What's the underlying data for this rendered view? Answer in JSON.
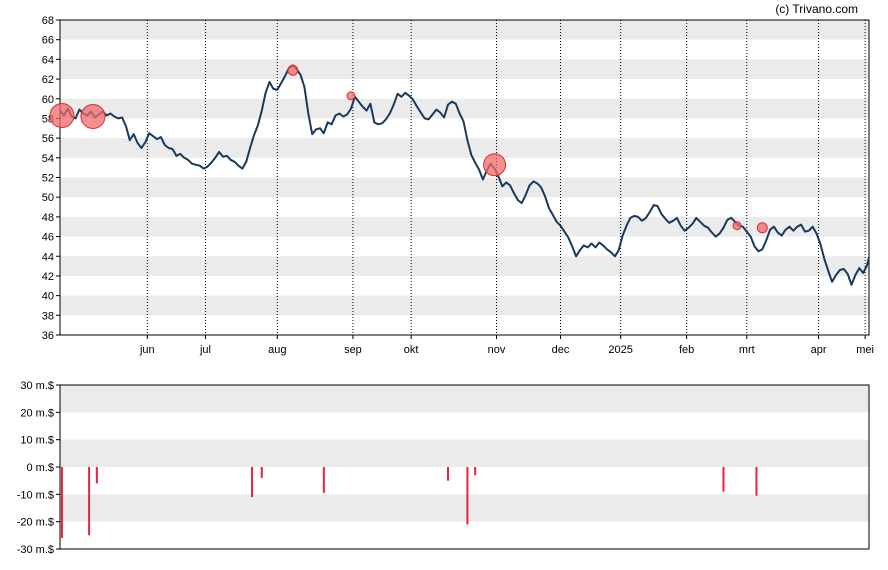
{
  "copyright": "(c) Trivano.com",
  "colors": {
    "price_line": "#1a3a5c",
    "band": "#ebebeb",
    "bubble_fill": "#f06a6a",
    "bubble_stroke": "#d93030",
    "bar": "#e3263a",
    "axis": "#000000"
  },
  "chart_data": [
    {
      "type": "line",
      "name": "price",
      "ylim": [
        36,
        68
      ],
      "y_ticks": [
        "36",
        "38",
        "40",
        "42",
        "44",
        "46",
        "48",
        "50",
        "52",
        "54",
        "56",
        "58",
        "60",
        "62",
        "64",
        "66",
        "68"
      ],
      "x_tick_labels": [
        "jun",
        "jul",
        "aug",
        "sep",
        "okt",
        "nov",
        "dec",
        "2025",
        "feb",
        "mrt",
        "apr",
        "mei"
      ],
      "x_tick_days": [
        45,
        75,
        112,
        151,
        181,
        225,
        258,
        289,
        323,
        354,
        391,
        415
      ],
      "x_range_days": [
        0,
        417
      ],
      "grid": "alternating horizontal bands, dotted vertical gridlines at month ticks",
      "points": [
        [
          0,
          58.8
        ],
        [
          2,
          58.3
        ],
        [
          4,
          59.0
        ],
        [
          6,
          58.2
        ],
        [
          8,
          58.0
        ],
        [
          10,
          58.9
        ],
        [
          12,
          58.5
        ],
        [
          14,
          58.3
        ],
        [
          16,
          58.7
        ],
        [
          18,
          58.1
        ],
        [
          20,
          58.4
        ],
        [
          22,
          58.7
        ],
        [
          24,
          58.3
        ],
        [
          26,
          58.5
        ],
        [
          28,
          58.2
        ],
        [
          30,
          58.0
        ],
        [
          32,
          58.1
        ],
        [
          34,
          57.2
        ],
        [
          36,
          55.8
        ],
        [
          38,
          56.4
        ],
        [
          40,
          55.5
        ],
        [
          42,
          55.0
        ],
        [
          44,
          55.6
        ],
        [
          46,
          56.5
        ],
        [
          48,
          56.2
        ],
        [
          50,
          55.9
        ],
        [
          52,
          56.1
        ],
        [
          54,
          55.3
        ],
        [
          56,
          55.0
        ],
        [
          58,
          54.9
        ],
        [
          60,
          54.2
        ],
        [
          62,
          54.4
        ],
        [
          64,
          54.0
        ],
        [
          66,
          53.8
        ],
        [
          68,
          53.4
        ],
        [
          70,
          53.3
        ],
        [
          72,
          53.2
        ],
        [
          74,
          52.9
        ],
        [
          76,
          53.1
        ],
        [
          78,
          53.5
        ],
        [
          80,
          54.0
        ],
        [
          82,
          54.6
        ],
        [
          84,
          54.1
        ],
        [
          86,
          54.2
        ],
        [
          88,
          53.8
        ],
        [
          90,
          53.6
        ],
        [
          92,
          53.2
        ],
        [
          94,
          52.9
        ],
        [
          96,
          53.6
        ],
        [
          98,
          55.0
        ],
        [
          100,
          56.3
        ],
        [
          102,
          57.3
        ],
        [
          104,
          58.8
        ],
        [
          106,
          60.6
        ],
        [
          108,
          61.7
        ],
        [
          110,
          61.0
        ],
        [
          112,
          60.9
        ],
        [
          114,
          61.6
        ],
        [
          116,
          62.3
        ],
        [
          118,
          63.1
        ],
        [
          120,
          63.4
        ],
        [
          122,
          63.0
        ],
        [
          124,
          62.4
        ],
        [
          126,
          61.2
        ],
        [
          128,
          58.5
        ],
        [
          130,
          56.4
        ],
        [
          132,
          56.9
        ],
        [
          134,
          57.0
        ],
        [
          136,
          56.5
        ],
        [
          138,
          57.6
        ],
        [
          140,
          57.4
        ],
        [
          142,
          58.3
        ],
        [
          144,
          58.5
        ],
        [
          146,
          58.2
        ],
        [
          148,
          58.4
        ],
        [
          150,
          59.0
        ],
        [
          152,
          60.2
        ],
        [
          154,
          59.7
        ],
        [
          156,
          59.2
        ],
        [
          158,
          58.8
        ],
        [
          160,
          59.5
        ],
        [
          162,
          57.6
        ],
        [
          164,
          57.4
        ],
        [
          166,
          57.5
        ],
        [
          168,
          57.9
        ],
        [
          170,
          58.5
        ],
        [
          172,
          59.4
        ],
        [
          174,
          60.5
        ],
        [
          176,
          60.2
        ],
        [
          178,
          60.6
        ],
        [
          180,
          60.3
        ],
        [
          182,
          59.9
        ],
        [
          184,
          59.2
        ],
        [
          186,
          58.6
        ],
        [
          188,
          58.0
        ],
        [
          190,
          57.9
        ],
        [
          192,
          58.4
        ],
        [
          194,
          58.9
        ],
        [
          196,
          58.6
        ],
        [
          198,
          58.1
        ],
        [
          200,
          59.4
        ],
        [
          202,
          59.7
        ],
        [
          204,
          59.5
        ],
        [
          206,
          58.5
        ],
        [
          208,
          57.7
        ],
        [
          210,
          55.8
        ],
        [
          212,
          54.3
        ],
        [
          214,
          53.5
        ],
        [
          216,
          52.8
        ],
        [
          218,
          51.8
        ],
        [
          220,
          52.7
        ],
        [
          222,
          53.4
        ],
        [
          224,
          52.9
        ],
        [
          226,
          52.1
        ],
        [
          228,
          51.1
        ],
        [
          230,
          51.5
        ],
        [
          232,
          51.2
        ],
        [
          234,
          50.4
        ],
        [
          236,
          49.7
        ],
        [
          238,
          49.4
        ],
        [
          240,
          50.2
        ],
        [
          242,
          51.2
        ],
        [
          244,
          51.6
        ],
        [
          246,
          51.4
        ],
        [
          248,
          51.0
        ],
        [
          250,
          50.1
        ],
        [
          252,
          48.9
        ],
        [
          254,
          48.2
        ],
        [
          256,
          47.5
        ],
        [
          258,
          47.1
        ],
        [
          260,
          46.5
        ],
        [
          262,
          45.9
        ],
        [
          264,
          45.0
        ],
        [
          266,
          44.0
        ],
        [
          268,
          44.6
        ],
        [
          270,
          45.1
        ],
        [
          272,
          44.9
        ],
        [
          274,
          45.3
        ],
        [
          276,
          44.9
        ],
        [
          278,
          45.4
        ],
        [
          280,
          45.1
        ],
        [
          282,
          44.7
        ],
        [
          284,
          44.4
        ],
        [
          286,
          44.0
        ],
        [
          288,
          44.6
        ],
        [
          290,
          46.1
        ],
        [
          292,
          47.1
        ],
        [
          294,
          47.9
        ],
        [
          296,
          48.1
        ],
        [
          298,
          48.0
        ],
        [
          300,
          47.6
        ],
        [
          302,
          47.9
        ],
        [
          304,
          48.5
        ],
        [
          306,
          49.2
        ],
        [
          308,
          49.1
        ],
        [
          310,
          48.3
        ],
        [
          312,
          47.8
        ],
        [
          314,
          47.4
        ],
        [
          316,
          47.6
        ],
        [
          318,
          47.9
        ],
        [
          320,
          47.1
        ],
        [
          322,
          46.6
        ],
        [
          324,
          46.9
        ],
        [
          326,
          47.3
        ],
        [
          328,
          47.9
        ],
        [
          330,
          47.5
        ],
        [
          332,
          47.1
        ],
        [
          334,
          46.9
        ],
        [
          336,
          46.4
        ],
        [
          338,
          46.0
        ],
        [
          340,
          46.3
        ],
        [
          342,
          46.9
        ],
        [
          344,
          47.7
        ],
        [
          346,
          47.9
        ],
        [
          348,
          47.5
        ],
        [
          350,
          47.1
        ],
        [
          352,
          47.0
        ],
        [
          354,
          46.5
        ],
        [
          356,
          46.0
        ],
        [
          358,
          45.0
        ],
        [
          360,
          44.5
        ],
        [
          362,
          44.7
        ],
        [
          364,
          45.6
        ],
        [
          366,
          46.7
        ],
        [
          368,
          47.0
        ],
        [
          370,
          46.4
        ],
        [
          372,
          46.1
        ],
        [
          374,
          46.7
        ],
        [
          376,
          47.0
        ],
        [
          378,
          46.6
        ],
        [
          380,
          47.0
        ],
        [
          382,
          47.2
        ],
        [
          384,
          46.5
        ],
        [
          386,
          46.6
        ],
        [
          388,
          47.0
        ],
        [
          390,
          46.3
        ],
        [
          392,
          45.2
        ],
        [
          394,
          43.7
        ],
        [
          396,
          42.5
        ],
        [
          398,
          41.4
        ],
        [
          400,
          42.1
        ],
        [
          402,
          42.6
        ],
        [
          404,
          42.7
        ],
        [
          406,
          42.2
        ],
        [
          408,
          41.1
        ],
        [
          410,
          42.1
        ],
        [
          412,
          42.8
        ],
        [
          414,
          42.3
        ],
        [
          416,
          43.1
        ],
        [
          417,
          43.9
        ]
      ],
      "bubbles": [
        {
          "x": 1,
          "y": 58.3,
          "r": 12
        },
        {
          "x": 17,
          "y": 58.2,
          "r": 12
        },
        {
          "x": 120,
          "y": 62.9,
          "r": 5
        },
        {
          "x": 150,
          "y": 60.3,
          "r": 4
        },
        {
          "x": 224,
          "y": 53.3,
          "r": 11
        },
        {
          "x": 349,
          "y": 47.1,
          "r": 4
        },
        {
          "x": 362,
          "y": 46.9,
          "r": 5
        }
      ]
    },
    {
      "type": "bar",
      "name": "transactions",
      "ylim": [
        -30,
        30
      ],
      "y_ticks": [
        "-30 m.$",
        "-20 m.$",
        "-10 m.$",
        "0 m.$",
        "10 m.$",
        "20 m.$",
        "30 m.$"
      ],
      "x_range_days": [
        0,
        417
      ],
      "bars": [
        {
          "x": 1,
          "value": -26
        },
        {
          "x": 15,
          "value": -25
        },
        {
          "x": 19,
          "value": -6
        },
        {
          "x": 99,
          "value": -11
        },
        {
          "x": 104,
          "value": -4
        },
        {
          "x": 136,
          "value": -9.5
        },
        {
          "x": 200,
          "value": -5
        },
        {
          "x": 210,
          "value": -21
        },
        {
          "x": 214,
          "value": -3
        },
        {
          "x": 342,
          "value": -9
        },
        {
          "x": 359,
          "value": -10.5
        }
      ]
    }
  ]
}
